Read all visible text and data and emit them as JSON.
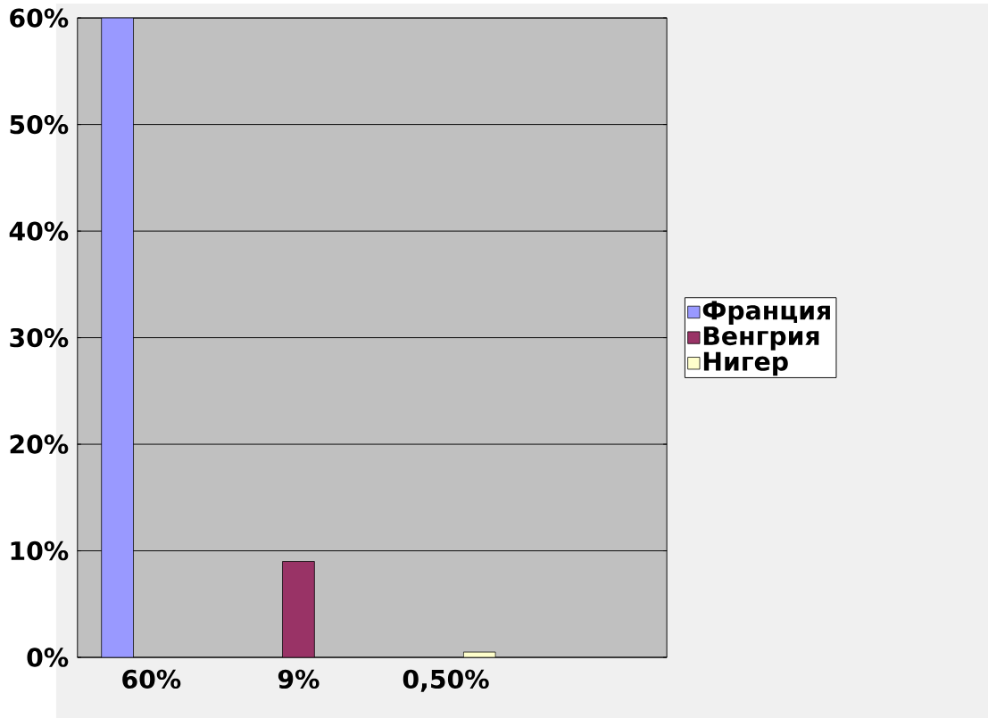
{
  "chart_data": {
    "type": "bar",
    "categories": [
      "60%",
      "9%",
      "0,50%",
      null
    ],
    "series": [
      {
        "name": "Франция",
        "color": "#9999ff",
        "values": [
          60,
          null,
          null,
          null
        ]
      },
      {
        "name": "Венгрия",
        "color": "#993366",
        "values": [
          null,
          9,
          null,
          null
        ]
      },
      {
        "name": "Нигер",
        "color": "#ffffcc",
        "values": [
          null,
          null,
          0.5,
          null
        ]
      }
    ],
    "ylim": [
      0,
      60
    ],
    "yticks": [
      {
        "value": 0,
        "label": "0%"
      },
      {
        "value": 10,
        "label": "10%"
      },
      {
        "value": 20,
        "label": "20%"
      },
      {
        "value": 30,
        "label": "30%"
      },
      {
        "value": 40,
        "label": "40%"
      },
      {
        "value": 50,
        "label": "50%"
      },
      {
        "value": 60,
        "label": "60%"
      }
    ],
    "grid": "y",
    "legend": "right"
  }
}
